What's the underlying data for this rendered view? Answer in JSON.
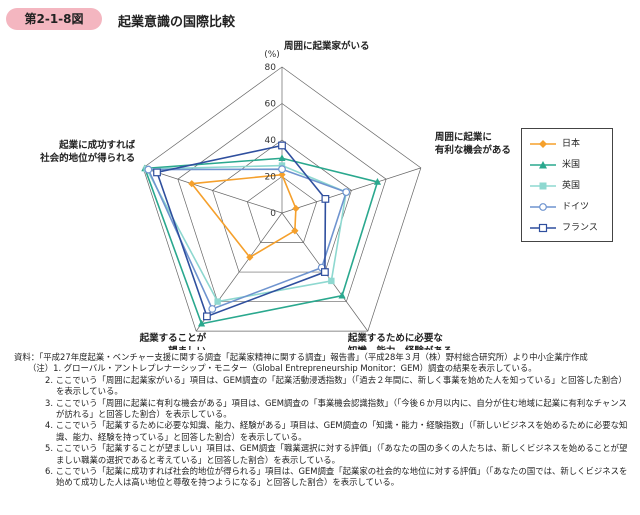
{
  "figure": {
    "number": "第2-1-8図",
    "title": "起業意識の国際比較"
  },
  "chart_data": {
    "type": "radar",
    "unit_label": "(%)",
    "rmax": 80,
    "ticks": [
      0,
      20,
      40,
      60,
      80
    ],
    "tick_labels": [
      "0",
      "20",
      "40",
      "60",
      "80"
    ],
    "axes": [
      "周囲に起業家がいる",
      "周囲に起業に有利な機会がある",
      "起業するために必要な知識、能力、経験がある",
      "起業することが望ましい",
      "起業に成功すれば社会的地位が得られる"
    ],
    "axis_label_lines": [
      [
        "周囲に起業家がいる"
      ],
      [
        "周囲に起業に",
        "有利な機会がある"
      ],
      [
        "起業するために必要な",
        "知識、能力、経験がある"
      ],
      [
        "起業することが",
        "望ましい"
      ],
      [
        "起業に成功すれば",
        "社会的地位が得られる"
      ]
    ],
    "series": [
      {
        "name": "日本",
        "color": "#f5a02c",
        "marker": "diamond",
        "values": [
          21,
          8,
          12,
          30,
          52
        ]
      },
      {
        "name": "米国",
        "color": "#2aa88e",
        "marker": "triangle",
        "values": [
          30,
          55,
          56,
          75,
          79
        ]
      },
      {
        "name": "英国",
        "color": "#8ed8d0",
        "marker": "square",
        "values": [
          26,
          37,
          46,
          60,
          78
        ]
      },
      {
        "name": "ドイツ",
        "color": "#6f94cf",
        "marker": "circle-open",
        "values": [
          24,
          37,
          37,
          65,
          77
        ]
      },
      {
        "name": "フランス",
        "color": "#2f4f9e",
        "marker": "square-open",
        "values": [
          37,
          25,
          40,
          70,
          72
        ]
      }
    ]
  },
  "notes": {
    "source": "資料：「平成27年度起業・ベンチャー支援に関する調査「起業家精神に関する調査」報告書」（平成28年３月（株）野村総合研究所）より中小企業庁作成",
    "lead": "（注）1. グローバル・アントレプレナーシップ・モニター（Global Entrepreneurship Monitor：GEM）調査の結果を表示している。",
    "items": [
      "2. ここでいう「周囲に起業家がいる」項目は、GEM調査の「起業活動浸透指数」（「過去２年間に、新しく事業を始めた人を知っている」と回答した割合）を表示している。",
      "3. ここでいう「周囲に起業に有利な機会がある」項目は、GEM調査の「事業機会認識指数」（「今後６か月以内に、自分が住む地域に起業に有利なチャンスが訪れる」と回答した割合）を表示している。",
      "4. ここでいう「起業するために必要な知識、能力、経験がある」項目は、GEM調査の「知識・能力・経験指数」（「新しいビジネスを始めるために必要な知識、能力、経験を持っている」と回答した割合）を表示している。",
      "5. ここでいう「起業することが望ましい」項目は、GEM調査「職業選択に対する評価」（「あなたの国の多くの人たちは、新しくビジネスを始めることが望ましい職業の選択であると考えている」と回答した割合）を表示している。",
      "6. ここでいう「起業に成功すれば社会的地位が得られる」項目は、GEM調査「起業家の社会的な地位に対する評価」（「あなたの国では、新しくビジネスを始めて成功した人は高い地位と尊敬を持つようになる」と回答した割合）を表示している。"
    ]
  }
}
